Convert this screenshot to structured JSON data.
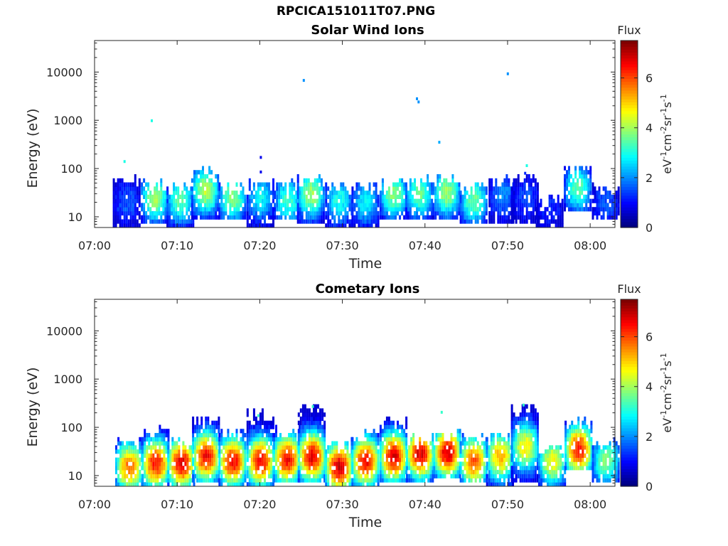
{
  "figure_title": "RPCICA151011T07.PNG",
  "chart_data": [
    {
      "type": "heatmap",
      "title": "Solar Wind Ions",
      "xlabel": "Time",
      "ylabel": "Energy (eV)",
      "yscale": "log",
      "ylim": [
        6,
        45000
      ],
      "xlim": [
        "07:00",
        "08:03"
      ],
      "xticks": [
        "07:00",
        "07:10",
        "07:20",
        "07:30",
        "07:40",
        "07:50",
        "08:00"
      ],
      "yticks": [
        "10",
        "100",
        "1000",
        "10000"
      ],
      "colorbar": {
        "title": "Flux",
        "label": "eV-1cm-2sr-1s-1",
        "range": [
          0,
          7.5
        ],
        "ticks": [
          "0",
          "2",
          "4",
          "6"
        ],
        "colormap": "jet"
      },
      "bursts": [
        {
          "t": 3.8,
          "e_min": 6,
          "e_max": 55,
          "peak": 1.6,
          "core": 20
        },
        {
          "t": 7.2,
          "e_min": 8,
          "e_max": 50,
          "peak": 4.0,
          "core": 25
        },
        {
          "t": 10.3,
          "e_min": 6,
          "e_max": 40,
          "peak": 3.5,
          "core": 22
        },
        {
          "t": 13.3,
          "e_min": 9,
          "e_max": 95,
          "peak": 4.2,
          "core": 35
        },
        {
          "t": 16.6,
          "e_min": 9,
          "e_max": 42,
          "peak": 3.8,
          "core": 25
        },
        {
          "t": 20.0,
          "e_min": 6,
          "e_max": 45,
          "peak": 2.8,
          "core": 25
        },
        {
          "t": 23.3,
          "e_min": 9,
          "e_max": 45,
          "peak": 3.3,
          "core": 22
        },
        {
          "t": 26.1,
          "e_min": 8,
          "e_max": 65,
          "peak": 4.0,
          "core": 30
        },
        {
          "t": 29.5,
          "e_min": 6,
          "e_max": 40,
          "peak": 3.0,
          "core": 22
        },
        {
          "t": 32.7,
          "e_min": 6,
          "e_max": 40,
          "peak": 2.7,
          "core": 20
        },
        {
          "t": 36.1,
          "e_min": 9,
          "e_max": 50,
          "peak": 3.8,
          "core": 30
        },
        {
          "t": 39.2,
          "e_min": 9,
          "e_max": 55,
          "peak": 3.6,
          "core": 30
        },
        {
          "t": 42.5,
          "e_min": 10,
          "e_max": 60,
          "peak": 4.0,
          "core": 32
        },
        {
          "t": 45.8,
          "e_min": 8,
          "e_max": 42,
          "peak": 3.6,
          "core": 22
        },
        {
          "t": 49.3,
          "e_min": 8,
          "e_max": 60,
          "peak": 2.0,
          "core": 30
        },
        {
          "t": 52.0,
          "e_min": 8,
          "e_max": 60,
          "peak": 1.5,
          "core": 25
        },
        {
          "t": 55.0,
          "e_min": 6,
          "e_max": 22,
          "peak": 1.2,
          "core": 15
        },
        {
          "t": 58.4,
          "e_min": 14,
          "e_max": 95,
          "peak": 3.5,
          "core": 40
        },
        {
          "t": 61.8,
          "e_min": 9,
          "e_max": 38,
          "peak": 1.6,
          "core": 20
        }
      ],
      "scatter_points": [
        {
          "t": 3.5,
          "e": 140,
          "v": 3.0
        },
        {
          "t": 6.8,
          "e": 980,
          "v": 3.0
        },
        {
          "t": 20.0,
          "e": 170,
          "v": 0.8
        },
        {
          "t": 20.0,
          "e": 85,
          "v": 0.8
        },
        {
          "t": 25.2,
          "e": 6700,
          "v": 2.0
        },
        {
          "t": 38.9,
          "e": 2800,
          "v": 2.0
        },
        {
          "t": 39.1,
          "e": 2400,
          "v": 2.0
        },
        {
          "t": 41.6,
          "e": 350,
          "v": 2.2
        },
        {
          "t": 49.9,
          "e": 9200,
          "v": 2.0
        },
        {
          "t": 52.2,
          "e": 115,
          "v": 3.0
        },
        {
          "t": 52.0,
          "e": 80,
          "v": 1.2
        }
      ]
    },
    {
      "type": "heatmap",
      "title": "Cometary Ions",
      "xlabel": "Time",
      "ylabel": "Energy (eV)",
      "yscale": "log",
      "ylim": [
        6,
        45000
      ],
      "xlim": [
        "07:00",
        "08:03"
      ],
      "xticks": [
        "07:00",
        "07:10",
        "07:20",
        "07:30",
        "07:40",
        "07:50",
        "08:00"
      ],
      "yticks": [
        "10",
        "100",
        "1000",
        "10000"
      ],
      "colorbar": {
        "title": "Flux",
        "label": "eV-1cm-2sr-1s-1",
        "range": [
          0,
          7.5
        ],
        "ticks": [
          "0",
          "2",
          "4",
          "6"
        ],
        "colormap": "jet"
      },
      "bursts": [
        {
          "t": 4.1,
          "e_min": 6,
          "e_max": 55,
          "peak": 5.8,
          "core": 15
        },
        {
          "t": 7.3,
          "e_min": 6,
          "e_max": 80,
          "peak": 6.5,
          "core": 18
        },
        {
          "t": 10.4,
          "e_min": 6,
          "e_max": 45,
          "peak": 6.8,
          "core": 18
        },
        {
          "t": 13.4,
          "e_min": 8,
          "e_max": 140,
          "peak": 6.6,
          "core": 25
        },
        {
          "t": 16.6,
          "e_min": 6,
          "e_max": 75,
          "peak": 6.6,
          "core": 20
        },
        {
          "t": 20.0,
          "e_min": 6,
          "e_max": 180,
          "peak": 6.6,
          "core": 20
        },
        {
          "t": 23.2,
          "e_min": 8,
          "e_max": 90,
          "peak": 6.6,
          "core": 22
        },
        {
          "t": 26.2,
          "e_min": 8,
          "e_max": 270,
          "peak": 6.8,
          "core": 25
        },
        {
          "t": 29.5,
          "e_min": 6,
          "e_max": 45,
          "peak": 6.9,
          "core": 15
        },
        {
          "t": 32.7,
          "e_min": 6,
          "e_max": 75,
          "peak": 6.6,
          "core": 20
        },
        {
          "t": 36.1,
          "e_min": 8,
          "e_max": 130,
          "peak": 6.8,
          "core": 25
        },
        {
          "t": 39.3,
          "e_min": 8,
          "e_max": 55,
          "peak": 6.8,
          "core": 28
        },
        {
          "t": 42.6,
          "e_min": 10,
          "e_max": 75,
          "peak": 6.9,
          "core": 30
        },
        {
          "t": 45.8,
          "e_min": 8,
          "e_max": 60,
          "peak": 6.0,
          "core": 20
        },
        {
          "t": 49.0,
          "e_min": 6,
          "e_max": 65,
          "peak": 5.3,
          "core": 25
        },
        {
          "t": 52.0,
          "e_min": 8,
          "e_max": 260,
          "peak": 4.8,
          "core": 40
        },
        {
          "t": 55.3,
          "e_min": 6,
          "e_max": 38,
          "peak": 4.7,
          "core": 20
        },
        {
          "t": 58.5,
          "e_min": 14,
          "e_max": 130,
          "peak": 6.5,
          "core": 35
        },
        {
          "t": 61.8,
          "e_min": 8,
          "e_max": 45,
          "peak": 3.8,
          "core": 20
        }
      ],
      "scatter_points": [
        {
          "t": 26.3,
          "e": 270,
          "v": 3.2
        },
        {
          "t": 41.9,
          "e": 205,
          "v": 3.2
        },
        {
          "t": 51.8,
          "e": 290,
          "v": 3.2
        },
        {
          "t": 19.7,
          "e": 175,
          "v": 3.2
        }
      ]
    }
  ]
}
